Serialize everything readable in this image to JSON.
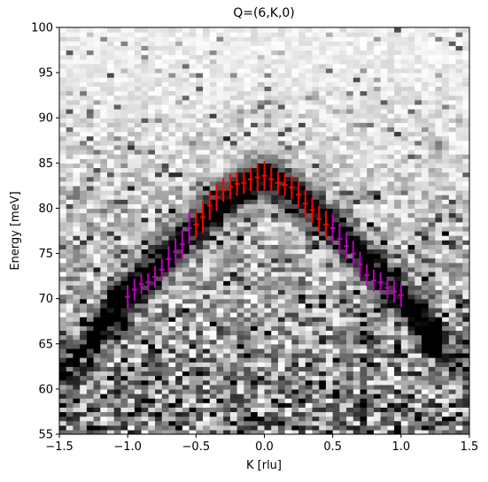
{
  "chart_data": {
    "type": "heatmap",
    "title": "Q=(6,K,0)",
    "xlabel": "K [rlu]",
    "ylabel": "Energy [meV]",
    "xlim": [
      -1.5,
      1.5
    ],
    "ylim": [
      55,
      100
    ],
    "xticks": [
      -1.5,
      -1.0,
      -0.5,
      0.0,
      0.5,
      1.0,
      1.5
    ],
    "xtick_labels": [
      "−1.5",
      "−1.0",
      "−0.5",
      "0.0",
      "0.5",
      "1.0",
      "1.5"
    ],
    "yticks": [
      55,
      60,
      65,
      70,
      75,
      80,
      85,
      90,
      95,
      100
    ],
    "ytick_labels": [
      "55",
      "60",
      "65",
      "70",
      "75",
      "80",
      "85",
      "90",
      "95",
      "100"
    ],
    "colormap": "gray_r",
    "grid": false,
    "heatmap": {
      "description_of_signal": "dispersion ridge peaking near 83.5 meV at K=0, falling to ~70 meV at K=±1; noisy background increasing toward low energy",
      "k_bins": 60,
      "e_bins": 90
    },
    "series": [
      {
        "color": "#ff0000",
        "marker": "errorbar",
        "x": [
          -0.5,
          -0.45,
          -0.4,
          -0.35,
          -0.3,
          -0.25,
          -0.2,
          -0.15,
          -0.1,
          -0.05,
          0.0,
          0.05,
          0.1,
          0.15,
          0.2,
          0.25,
          0.3,
          0.35,
          0.4,
          0.45
        ],
        "y": [
          78.2,
          79.0,
          80.3,
          81.2,
          82.0,
          82.4,
          82.7,
          82.8,
          83.2,
          83.4,
          83.6,
          83.2,
          82.8,
          82.6,
          82.3,
          81.5,
          80.5,
          79.8,
          78.8,
          78.2
        ],
        "yerr": [
          1.5,
          1.8,
          1.6,
          1.5,
          1.3,
          1.4,
          1.3,
          1.2,
          1.3,
          1.6,
          1.6,
          1.4,
          1.3,
          1.2,
          1.3,
          1.4,
          1.5,
          1.4,
          1.5,
          1.5
        ]
      },
      {
        "color": "#bb00bb",
        "marker": "errorbar",
        "x": [
          -1.0,
          -0.95,
          -0.9,
          -0.85,
          -0.8,
          -0.75,
          -0.7,
          -0.65,
          -0.6,
          -0.55,
          0.5,
          0.55,
          0.6,
          0.65,
          0.7,
          0.75,
          0.8,
          0.85,
          0.9,
          0.95,
          1.0
        ],
        "y": [
          70.2,
          71.0,
          71.6,
          71.8,
          72.4,
          73.2,
          74.4,
          75.2,
          76.0,
          77.8,
          77.8,
          76.6,
          75.8,
          75.0,
          73.8,
          72.6,
          72.0,
          71.8,
          71.2,
          70.8,
          70.4
        ],
        "yerr": [
          1.3,
          1.2,
          1.1,
          1.0,
          1.2,
          1.2,
          1.4,
          1.5,
          1.6,
          1.8,
          1.6,
          1.7,
          1.5,
          1.4,
          1.4,
          1.2,
          1.2,
          1.1,
          1.2,
          1.2,
          1.3
        ]
      }
    ]
  }
}
